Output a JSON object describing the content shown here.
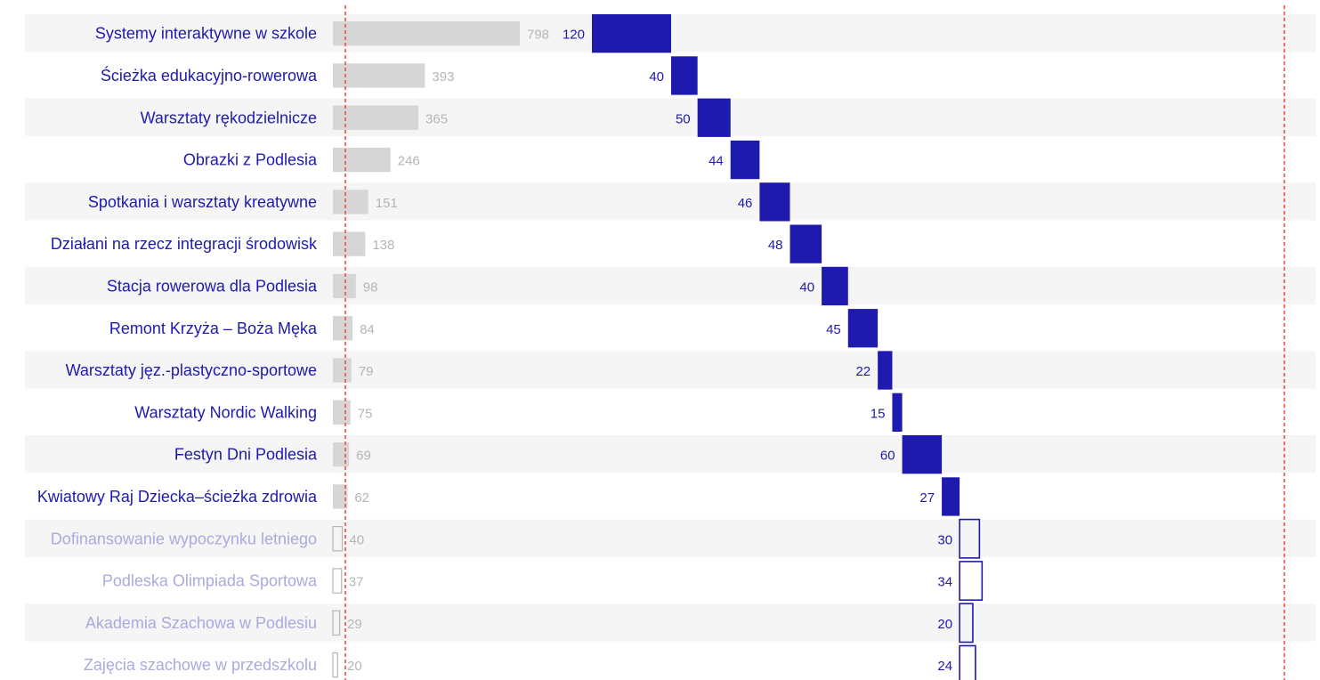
{
  "colors": {
    "funded": "#1f1aae",
    "unfunded": "#aaaadd",
    "vote_bar": "#d6d6d6",
    "vote_text": "#b5b5b5",
    "stripe": "#f5f5f5",
    "threshold_line": "#f0503c"
  },
  "chart_data": {
    "type": "bar",
    "title": "",
    "series": [
      {
        "name": "",
        "values": [
          798,
          393,
          365,
          246,
          151,
          138,
          98,
          84,
          79,
          75,
          69,
          62,
          40,
          37,
          29,
          20
        ]
      },
      {
        "name": "",
        "values": [
          120,
          40,
          50,
          44,
          46,
          48,
          40,
          45,
          22,
          15,
          60,
          27,
          30,
          34,
          20,
          24
        ]
      }
    ],
    "funded": [
      true,
      true,
      true,
      true,
      true,
      true,
      true,
      true,
      true,
      true,
      true,
      true,
      false,
      false,
      false,
      false
    ],
    "categories": [
      "Systemy interaktywne w szkole",
      "Ścieżka edukacyjno-rowerowa",
      "Warsztaty rękodzielnicze",
      "Obrazki z Podlesia",
      "Spotkania i warsztaty kreatywne",
      "Działani na rzecz integracji środowisk",
      "Stacja rowerowa dla Podlesia",
      "Remont Krzyża – Boża Męka",
      "Warsztaty jęz.-plastyczno-sportowe",
      "Warsztaty Nordic Walking",
      "Festyn Dni Podlesia",
      "Kwiatowy Raj Dziecka–ścieżka zdrowia",
      "Dofinansowanie wypoczynku letniego",
      "Podleska Olimpiada Sportowa",
      "Akademia Szachowa w Podlesiu",
      "Zajęcia szachowe w przedszkolu"
    ],
    "grid": false,
    "legend": "none"
  }
}
